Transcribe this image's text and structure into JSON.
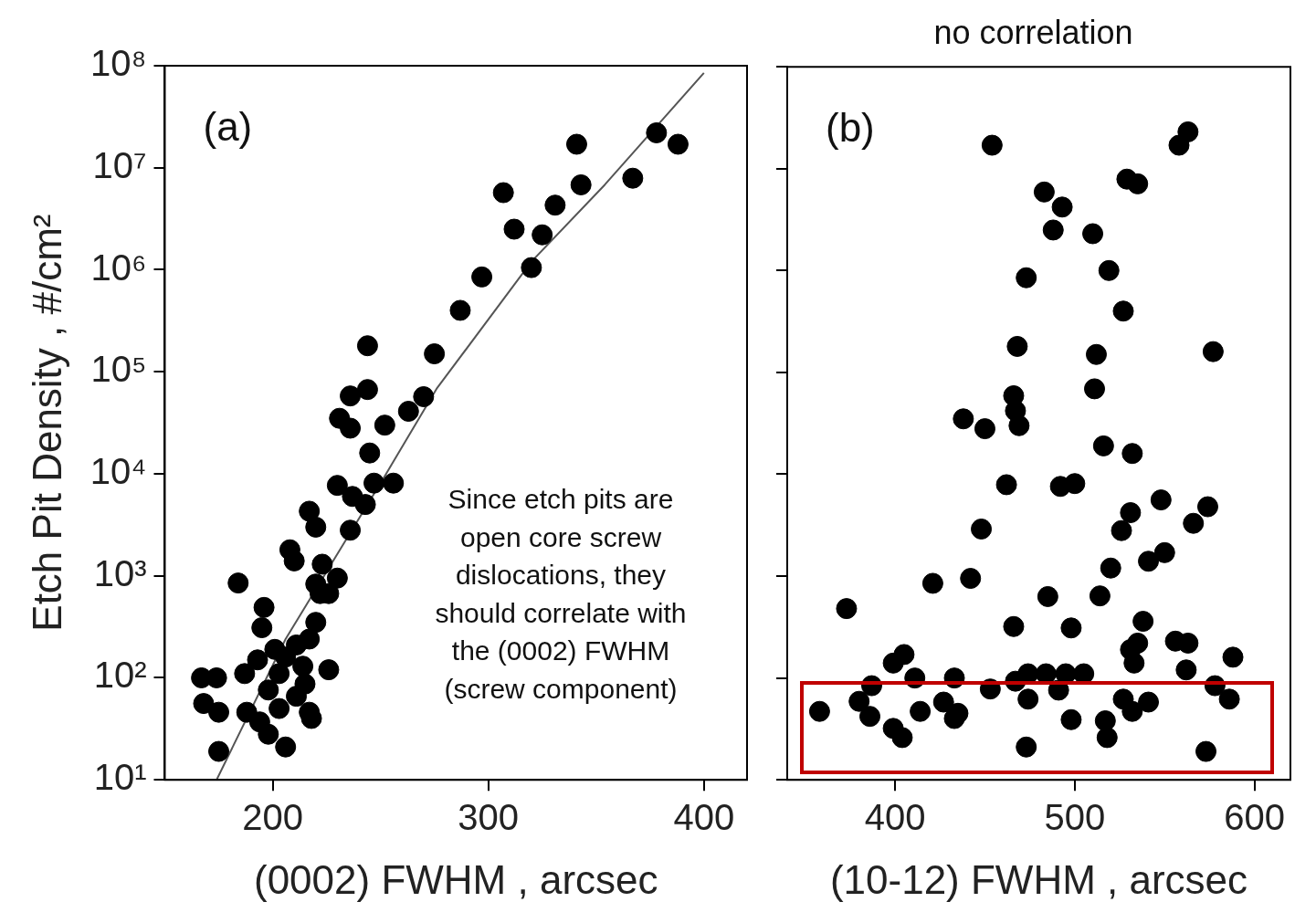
{
  "chart_data": [
    {
      "type": "scatter",
      "xlabel": "(0002) FWHM , arcsec",
      "ylabel": "Etch Pit Density , #/cm²",
      "xlim": [
        150,
        420
      ],
      "xticks": [
        200,
        300,
        400
      ],
      "ylim": [
        10,
        100000000
      ],
      "yticks": [
        {
          "value": 10,
          "label": "10¹"
        },
        {
          "value": 100,
          "label": "10²"
        },
        {
          "value": 1000,
          "label": "10³"
        },
        {
          "value": 10000,
          "label": "10⁴"
        },
        {
          "value": 100000,
          "label": "10⁵"
        },
        {
          "value": 1000000,
          "label": "10⁶"
        },
        {
          "value": 10000000,
          "label": "10⁷"
        },
        {
          "value": 100000000,
          "label": "10⁸"
        }
      ],
      "log": "y",
      "marker": "circle",
      "annotations": [
        "(a)",
        "Since etch pits are open core screw dislocations, they should correlate with the (0002) FWHM (screw component)"
      ],
      "series": [
        {
          "color": "#000000",
          "x": [
            167,
            174,
            168,
            175,
            175,
            184,
            196,
            195,
            187,
            193,
            201,
            206,
            211,
            214,
            203,
            198,
            188,
            194,
            198,
            206,
            203,
            211,
            217,
            218,
            215,
            226,
            220,
            217,
            222,
            220,
            230,
            226,
            223,
            208,
            210,
            217,
            220,
            236,
            230,
            237,
            243,
            247,
            256,
            231,
            236,
            236,
            244,
            244,
            245,
            252,
            263,
            270,
            275,
            287,
            297,
            307,
            312,
            325,
            331,
            320,
            341,
            343,
            367,
            378,
            388
          ],
          "values": [
            100,
            100,
            56,
            46,
            19,
            850,
            490,
            310,
            110,
            150,
            190,
            160,
            210,
            130,
            110,
            76,
            46,
            37,
            28,
            21,
            50,
            66,
            46,
            40,
            87,
            120,
            350,
            240,
            670,
            830,
            950,
            670,
            1300,
            1800,
            1400,
            4300,
            3000,
            2800,
            7700,
            6000,
            5000,
            8100,
            8100,
            35000,
            28000,
            58000,
            67000,
            180000,
            16000,
            30000,
            41000,
            57000,
            150000,
            400000,
            850000,
            5700000,
            2500000,
            2200000,
            4300000,
            1050000,
            17000000,
            6800000,
            7900000,
            22000000,
            17000000
          ]
        },
        {
          "type": "line",
          "color": "#555555",
          "marker": "none",
          "x": [
            174,
            206,
            252,
            276,
            320,
            354,
            400
          ],
          "values": [
            10,
            240,
            9500,
            68000,
            1200000,
            6800000,
            85000000
          ]
        }
      ]
    },
    {
      "type": "scatter",
      "title": "no correlation",
      "xlabel": "(10-12) FWHM , arcsec",
      "xlim": [
        340,
        620
      ],
      "xticks": [
        400,
        500,
        600
      ],
      "ylim": [
        10,
        100000000
      ],
      "yticks": [
        {
          "value": 10,
          "label": null
        },
        {
          "value": 100,
          "label": null
        },
        {
          "value": 1000,
          "label": null
        },
        {
          "value": 10000,
          "label": null
        },
        {
          "value": 100000,
          "label": null
        },
        {
          "value": 1000000,
          "label": null
        },
        {
          "value": 10000000,
          "label": null
        },
        {
          "value": 100000000,
          "label": null
        }
      ],
      "log": "y",
      "marker": "circle",
      "tick_labels": "x",
      "annotations": [
        "(b)"
      ],
      "series": [
        {
          "color": "#000000",
          "x": [
            454,
            558,
            563,
            529,
            535,
            483,
            493,
            488,
            510,
            519,
            473,
            527,
            468,
            512,
            577,
            511,
            466,
            467,
            469,
            438,
            450,
            516,
            532,
            462,
            492,
            500,
            548,
            531,
            526,
            574,
            566,
            448,
            550,
            541,
            520,
            373,
            421,
            442,
            485,
            514,
            466,
            498,
            538,
            535,
            531,
            533,
            556,
            563,
            562,
            588,
            399,
            405,
            387,
            411,
            433,
            453,
            467,
            474,
            484,
            495,
            505,
            578,
            358,
            380,
            386,
            399,
            404,
            414,
            427,
            433,
            435,
            474,
            491,
            498,
            517,
            518,
            527,
            532,
            541,
            586,
            473,
            573
          ],
          "values": [
            17000000,
            17000000,
            23000000,
            7900000,
            7100000,
            5900000,
            4200000,
            2500000,
            2300000,
            1000000,
            850000,
            400000,
            180000,
            150000,
            160000,
            69000,
            59000,
            42000,
            30000,
            35000,
            28000,
            19000,
            16000,
            7900,
            7600,
            8100,
            5600,
            4200,
            2800,
            4800,
            3300,
            2900,
            1700,
            1400,
            1200,
            480,
            850,
            950,
            630,
            640,
            320,
            310,
            360,
            220,
            190,
            140,
            230,
            220,
            120,
            160,
            140,
            170,
            84,
            100,
            100,
            78,
            93,
            110,
            110,
            110,
            110,
            84,
            47,
            59,
            42,
            32,
            26,
            47,
            58,
            40,
            45,
            62,
            76,
            39,
            38,
            26,
            62,
            47,
            58,
            62,
            21,
            19
          ]
        }
      ]
    }
  ]
}
